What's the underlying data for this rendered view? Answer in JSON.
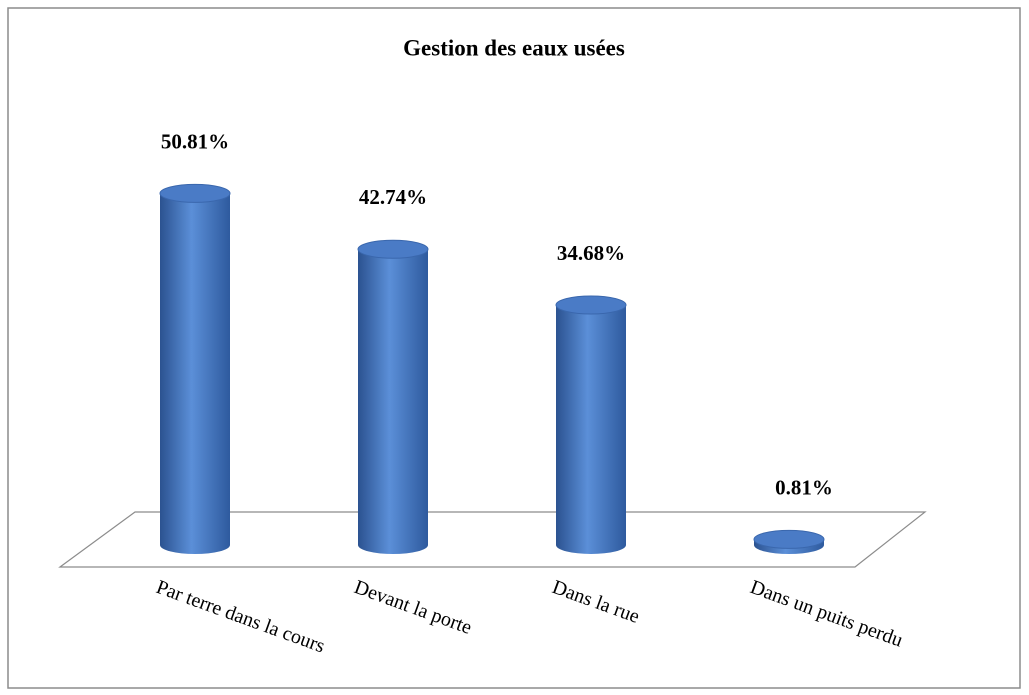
{
  "chart_data": {
    "type": "bar3d",
    "title": "Gestion des eaux usées",
    "categories": [
      "Par terre dans la cours",
      "Devant la porte",
      "Dans la rue",
      "Dans un puits perdu"
    ],
    "values": [
      50.81,
      42.74,
      34.68,
      0.81
    ],
    "value_labels": [
      "50.81%",
      "42.74%",
      "34.68%",
      "0.81%"
    ],
    "color": "#4472c4"
  }
}
